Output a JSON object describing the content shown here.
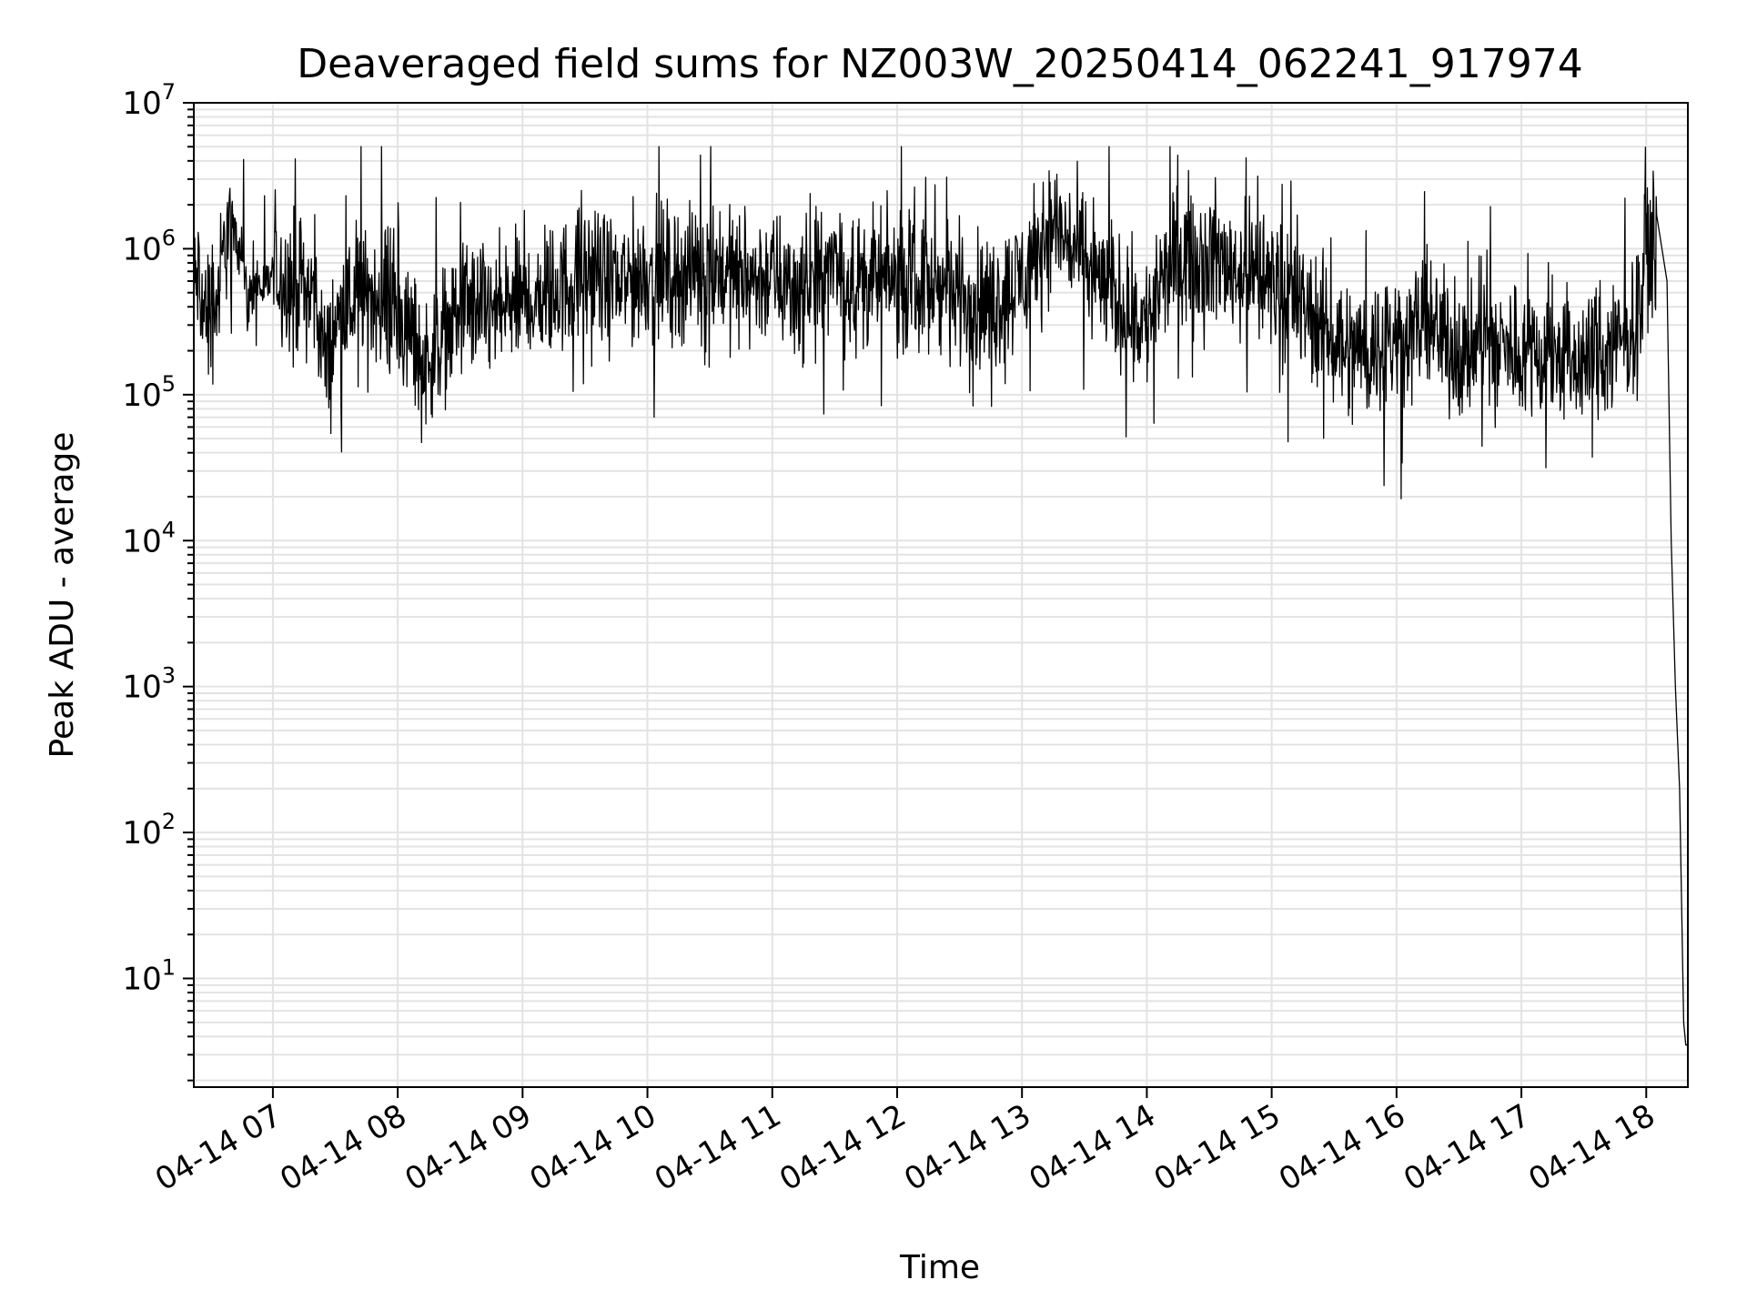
{
  "chart_data": {
    "type": "line",
    "title": "Deaveraged field sums for NZ003W_20250414_062241_917974",
    "xlabel": "Time",
    "ylabel": "Peak ADU - average",
    "yscale": "log",
    "grid": true,
    "xlim": [
      "04-14 06:22",
      "04-14 18:20"
    ],
    "ylim": [
      1.8,
      10000000
    ],
    "x_ticks": [
      "04-14 07",
      "04-14 08",
      "04-14 09",
      "04-14 10",
      "04-14 11",
      "04-14 12",
      "04-14 13",
      "04-14 14",
      "04-14 15",
      "04-14 16",
      "04-14 17",
      "04-14 18"
    ],
    "y_ticks": [
      {
        "base": "10",
        "exp": "1"
      },
      {
        "base": "10",
        "exp": "2"
      },
      {
        "base": "10",
        "exp": "3"
      },
      {
        "base": "10",
        "exp": "4"
      },
      {
        "base": "10",
        "exp": "5"
      },
      {
        "base": "10",
        "exp": "6"
      },
      {
        "base": "10",
        "exp": "7"
      }
    ],
    "series": [
      {
        "color": "#000000",
        "x": [
          "04-14 06:22",
          "04-14 06:24",
          "04-14 06:26",
          "04-14 06:30",
          "04-14 06:34",
          "04-14 06:38",
          "04-14 06:42",
          "04-14 06:45",
          "04-14 06:48",
          "04-14 06:52",
          "04-14 06:56",
          "04-14 07:00",
          "04-14 07:10",
          "04-14 07:20",
          "04-14 07:26",
          "04-14 07:30",
          "04-14 07:40",
          "04-14 07:50",
          "04-14 08:00",
          "04-14 08:10",
          "04-14 08:12",
          "04-14 08:20",
          "04-14 08:30",
          "04-14 08:38",
          "04-14 08:45",
          "04-14 09:00",
          "04-14 09:15",
          "04-14 09:30",
          "04-14 09:45",
          "04-14 10:00",
          "04-14 10:15",
          "04-14 10:30",
          "04-14 10:45",
          "04-14 11:00",
          "04-14 11:15",
          "04-14 11:30",
          "04-14 11:45",
          "04-14 12:00",
          "04-14 12:15",
          "04-14 12:30",
          "04-14 12:45",
          "04-14 13:00",
          "04-14 13:15",
          "04-14 13:30",
          "04-14 13:45",
          "04-14 14:00",
          "04-14 14:15",
          "04-14 14:30",
          "04-14 14:45",
          "04-14 15:00",
          "04-14 15:15",
          "04-14 15:30",
          "04-14 15:45",
          "04-14 16:00",
          "04-14 16:15",
          "04-14 16:30",
          "04-14 16:45",
          "04-14 17:00",
          "04-14 17:15",
          "04-14 17:30",
          "04-14 17:45",
          "04-14 17:55",
          "04-14 18:00",
          "04-14 18:05",
          "04-14 18:10",
          "04-14 18:12",
          "04-14 18:14",
          "04-14 18:16",
          "04-14 18:18",
          "04-14 18:19",
          "04-14 18:20"
        ],
        "y": [
          500000,
          650000,
          400000,
          350000,
          500000,
          1400000,
          1300000,
          1000000,
          400000,
          600000,
          500000,
          700000,
          600000,
          500000,
          150000,
          300000,
          450000,
          500000,
          350000,
          200000,
          150000,
          250000,
          350000,
          400000,
          350000,
          450000,
          500000,
          700000,
          550000,
          700000,
          650000,
          800000,
          600000,
          650000,
          500000,
          700000,
          600000,
          600000,
          550000,
          500000,
          400000,
          650000,
          1500000,
          800000,
          450000,
          300000,
          1000000,
          900000,
          700000,
          600000,
          400000,
          250000,
          200000,
          250000,
          300000,
          200000,
          220000,
          200000,
          180000,
          170000,
          200000,
          300000,
          1000000,
          1200000,
          600000,
          10000,
          1000,
          200,
          5,
          3.5,
          3.5
        ]
      }
    ]
  }
}
